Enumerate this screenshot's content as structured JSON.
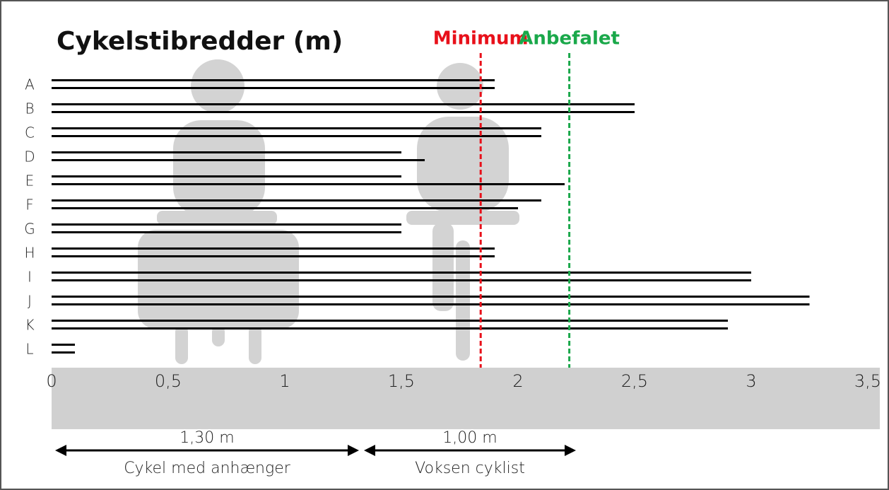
{
  "chart_data": {
    "type": "paired-hbar",
    "title": "Cykelstibredder (m)",
    "categories": [
      "A",
      "B",
      "C",
      "D",
      "E",
      "F",
      "G",
      "H",
      "I",
      "J",
      "K",
      "L"
    ],
    "series": [
      {
        "color": "#000000",
        "values": [
          1.9,
          2.5,
          2.1,
          1.5,
          1.5,
          2.1,
          1.5,
          1.9,
          3.0,
          3.25,
          2.9,
          0.1
        ]
      },
      {
        "color": "#000000",
        "values": [
          1.9,
          2.5,
          2.1,
          1.6,
          2.2,
          2.0,
          1.5,
          1.9,
          3.0,
          3.25,
          2.9,
          0.1
        ]
      }
    ],
    "xlim": [
      0,
      3.5
    ],
    "xticks": [
      0,
      {
        "value": 0.5,
        "label": "0,5"
      },
      1,
      {
        "value": 1.5,
        "label": "1,5"
      },
      2,
      {
        "value": 2.5,
        "label": "2,5"
      },
      3,
      {
        "value": 3.5,
        "label": "3,5"
      }
    ],
    "reference_lines": [
      {
        "label": "Minimum",
        "value": 1.84,
        "color": "#e8101a"
      },
      {
        "label": "Anbefalet",
        "value": 2.22,
        "color": "#1aa84a"
      }
    ],
    "annotations": [
      {
        "width": "1,30 m",
        "label": "Cykel med anhænger"
      },
      {
        "width": "1,00 m",
        "label": "Voksen cyklist"
      }
    ]
  }
}
